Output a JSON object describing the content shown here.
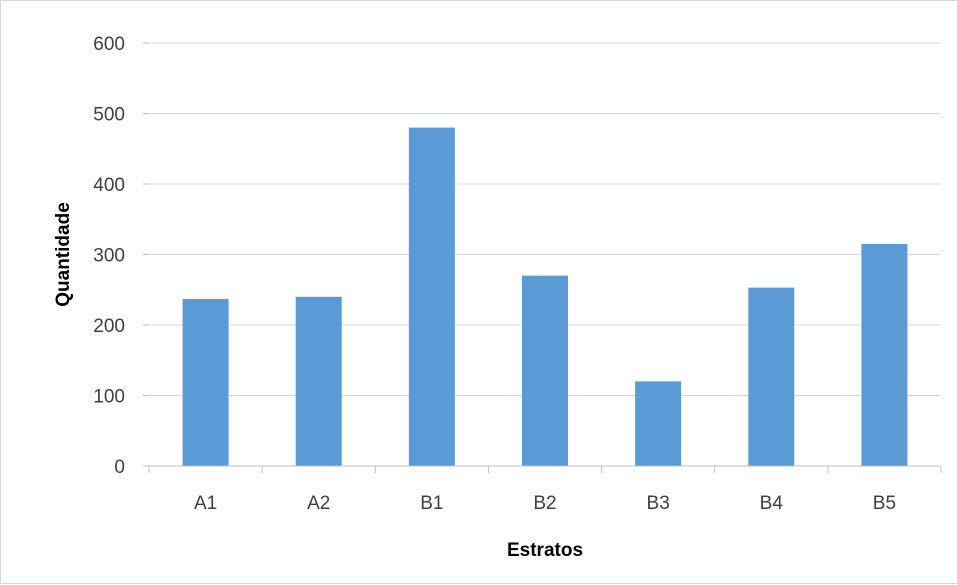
{
  "chart_data": {
    "type": "bar",
    "title": "",
    "xlabel": "Estratos",
    "ylabel": "Quantidade",
    "categories": [
      "A1",
      "A2",
      "B1",
      "B2",
      "B3",
      "B4",
      "B5"
    ],
    "values": [
      237,
      240,
      480,
      270,
      120,
      253,
      315
    ],
    "ylim": [
      0,
      600
    ],
    "yticks": [
      0,
      100,
      200,
      300,
      400,
      500,
      600
    ],
    "grid": true,
    "legend": "none",
    "colors": {
      "bar": "#5b9bd5",
      "grid": "#d9d9d9",
      "axis": "#bfbfbf"
    }
  }
}
